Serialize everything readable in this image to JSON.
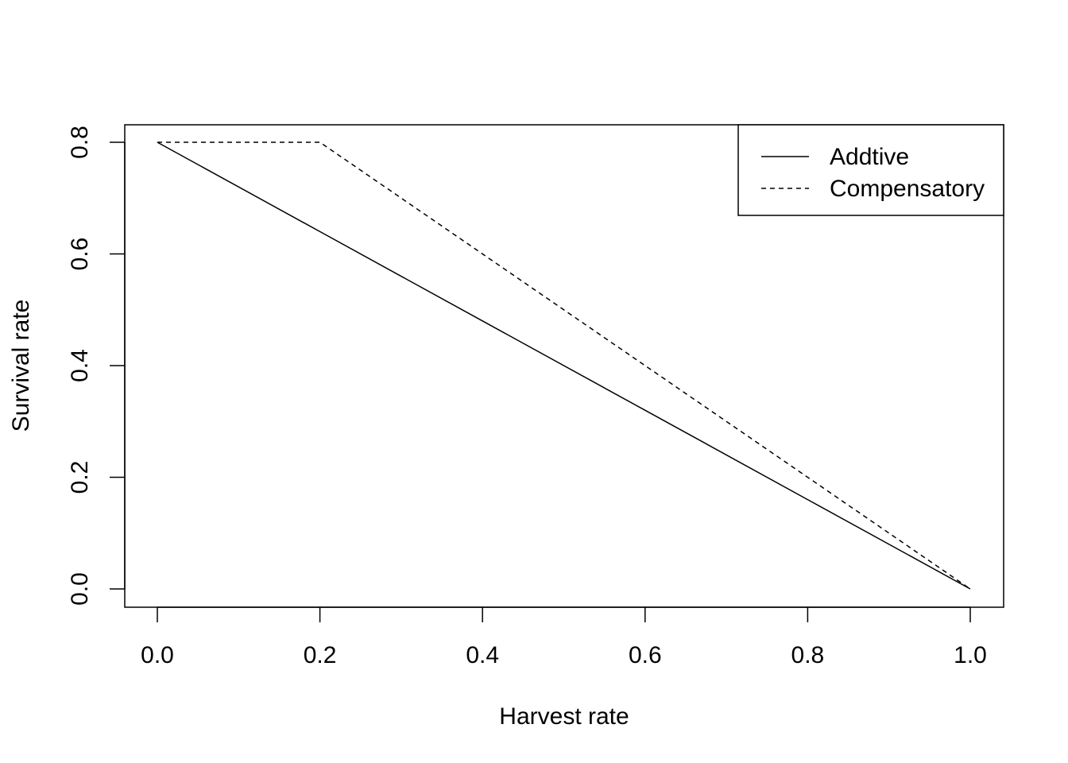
{
  "chart_data": {
    "type": "line",
    "title": "",
    "xlabel": "Harvest rate",
    "ylabel": "Survival rate",
    "xlim": [
      0,
      1
    ],
    "ylim": [
      0,
      0.8
    ],
    "xticks": [
      "0.0",
      "0.2",
      "0.4",
      "0.6",
      "0.8",
      "1.0"
    ],
    "yticks": [
      "0.0",
      "0.2",
      "0.4",
      "0.6",
      "0.8"
    ],
    "grid": false,
    "legend_position": "top-right",
    "series": [
      {
        "name": "Addtive",
        "line_style": "solid",
        "color": "#000000",
        "x": [
          0.0,
          0.2,
          0.4,
          0.6,
          0.8,
          1.0
        ],
        "y": [
          0.8,
          0.64,
          0.48,
          0.32,
          0.16,
          0.0
        ]
      },
      {
        "name": "Compensatory",
        "line_style": "dashed",
        "color": "#000000",
        "x": [
          0.0,
          0.2,
          0.4,
          0.6,
          0.8,
          1.0
        ],
        "y": [
          0.8,
          0.8,
          0.6,
          0.4,
          0.2,
          0.0
        ]
      }
    ]
  }
}
